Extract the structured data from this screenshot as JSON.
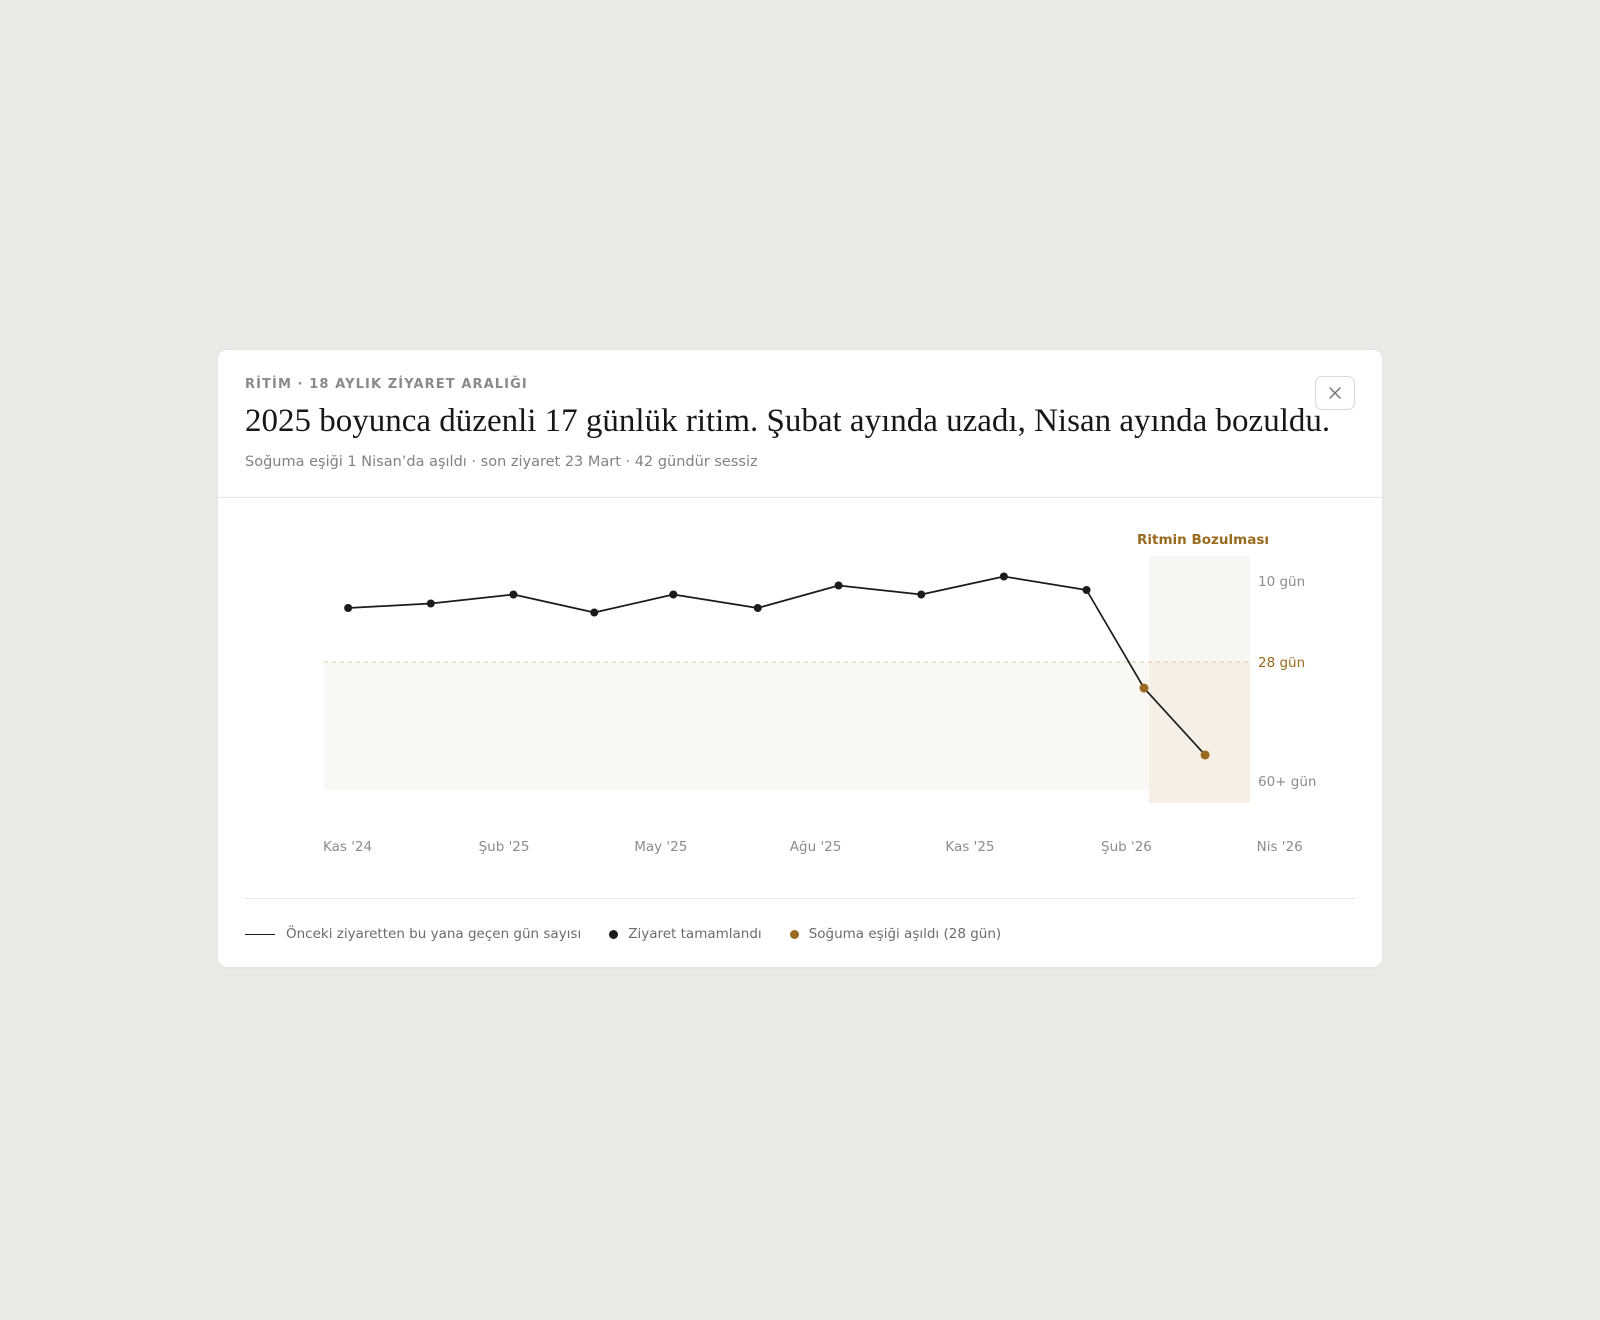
{
  "modal": {
    "eyebrow": "RİTİM · 18 AYLIK ZİYARET ARALIĞI",
    "title": "2025 boyunca düzenli 17 günlük ritim. Şubat ayında uzadı, Nisan ayında bozuldu.",
    "subtitle": "Soğuma eşiği 1 Nisan’da aşıldı · son ziyaret 23 Mart · 42 gündür sessiz",
    "close_icon": "close-icon"
  },
  "legend": {
    "line_label": "Önceki ziyaretten bu yana geçen gün sayısı",
    "visit_label": "Ziyaret tamamlandı",
    "threshold_label": "Soğuma eşiği aşıldı (28 gün)"
  },
  "colors": {
    "line": "#1b1b1b",
    "accent": "#9a6a1e",
    "band": "#f5efe6",
    "zone": "#faf8f5",
    "axis_text": "#8f8c87"
  },
  "chart_data": {
    "type": "line",
    "title": "",
    "xlabel": "",
    "ylabel": "",
    "x_ticks": [
      "Kas '24",
      "Şub '25",
      "May '25",
      "Ağu '25",
      "Kas '25",
      "Şub '26",
      "Nis '26"
    ],
    "y_ticks": [
      {
        "value": 10,
        "label": "10 gün"
      },
      {
        "value": 28,
        "label": "28 gün"
      },
      {
        "value": 60,
        "label": "60+ gün"
      }
    ],
    "y_inverted": true,
    "threshold": {
      "value": 28,
      "label": "28 gün"
    },
    "annotation": {
      "label": "Ritmin Bozulması"
    },
    "series": [
      {
        "name": "Önceki ziyaretten bu yana geçen gün sayısı",
        "points": [
          {
            "x": "2024-11-15",
            "y": 16,
            "status": "ziyaret"
          },
          {
            "x": "2024-12-31",
            "y": 15,
            "status": "ziyaret"
          },
          {
            "x": "2025-02-15",
            "y": 13,
            "status": "ziyaret"
          },
          {
            "x": "2025-04-01",
            "y": 17,
            "status": "ziyaret"
          },
          {
            "x": "2025-05-15",
            "y": 13,
            "status": "ziyaret"
          },
          {
            "x": "2025-07-01",
            "y": 16,
            "status": "ziyaret"
          },
          {
            "x": "2025-08-15",
            "y": 11,
            "status": "ziyaret"
          },
          {
            "x": "2025-09-30",
            "y": 13,
            "status": "ziyaret"
          },
          {
            "x": "2025-11-15",
            "y": 9,
            "status": "ziyaret"
          },
          {
            "x": "2025-12-31",
            "y": 12,
            "status": "ziyaret"
          },
          {
            "x": "2026-02-01",
            "y": 35,
            "status": "esik"
          },
          {
            "x": "2026-03-07",
            "y": 53,
            "status": "esik"
          }
        ]
      }
    ]
  }
}
